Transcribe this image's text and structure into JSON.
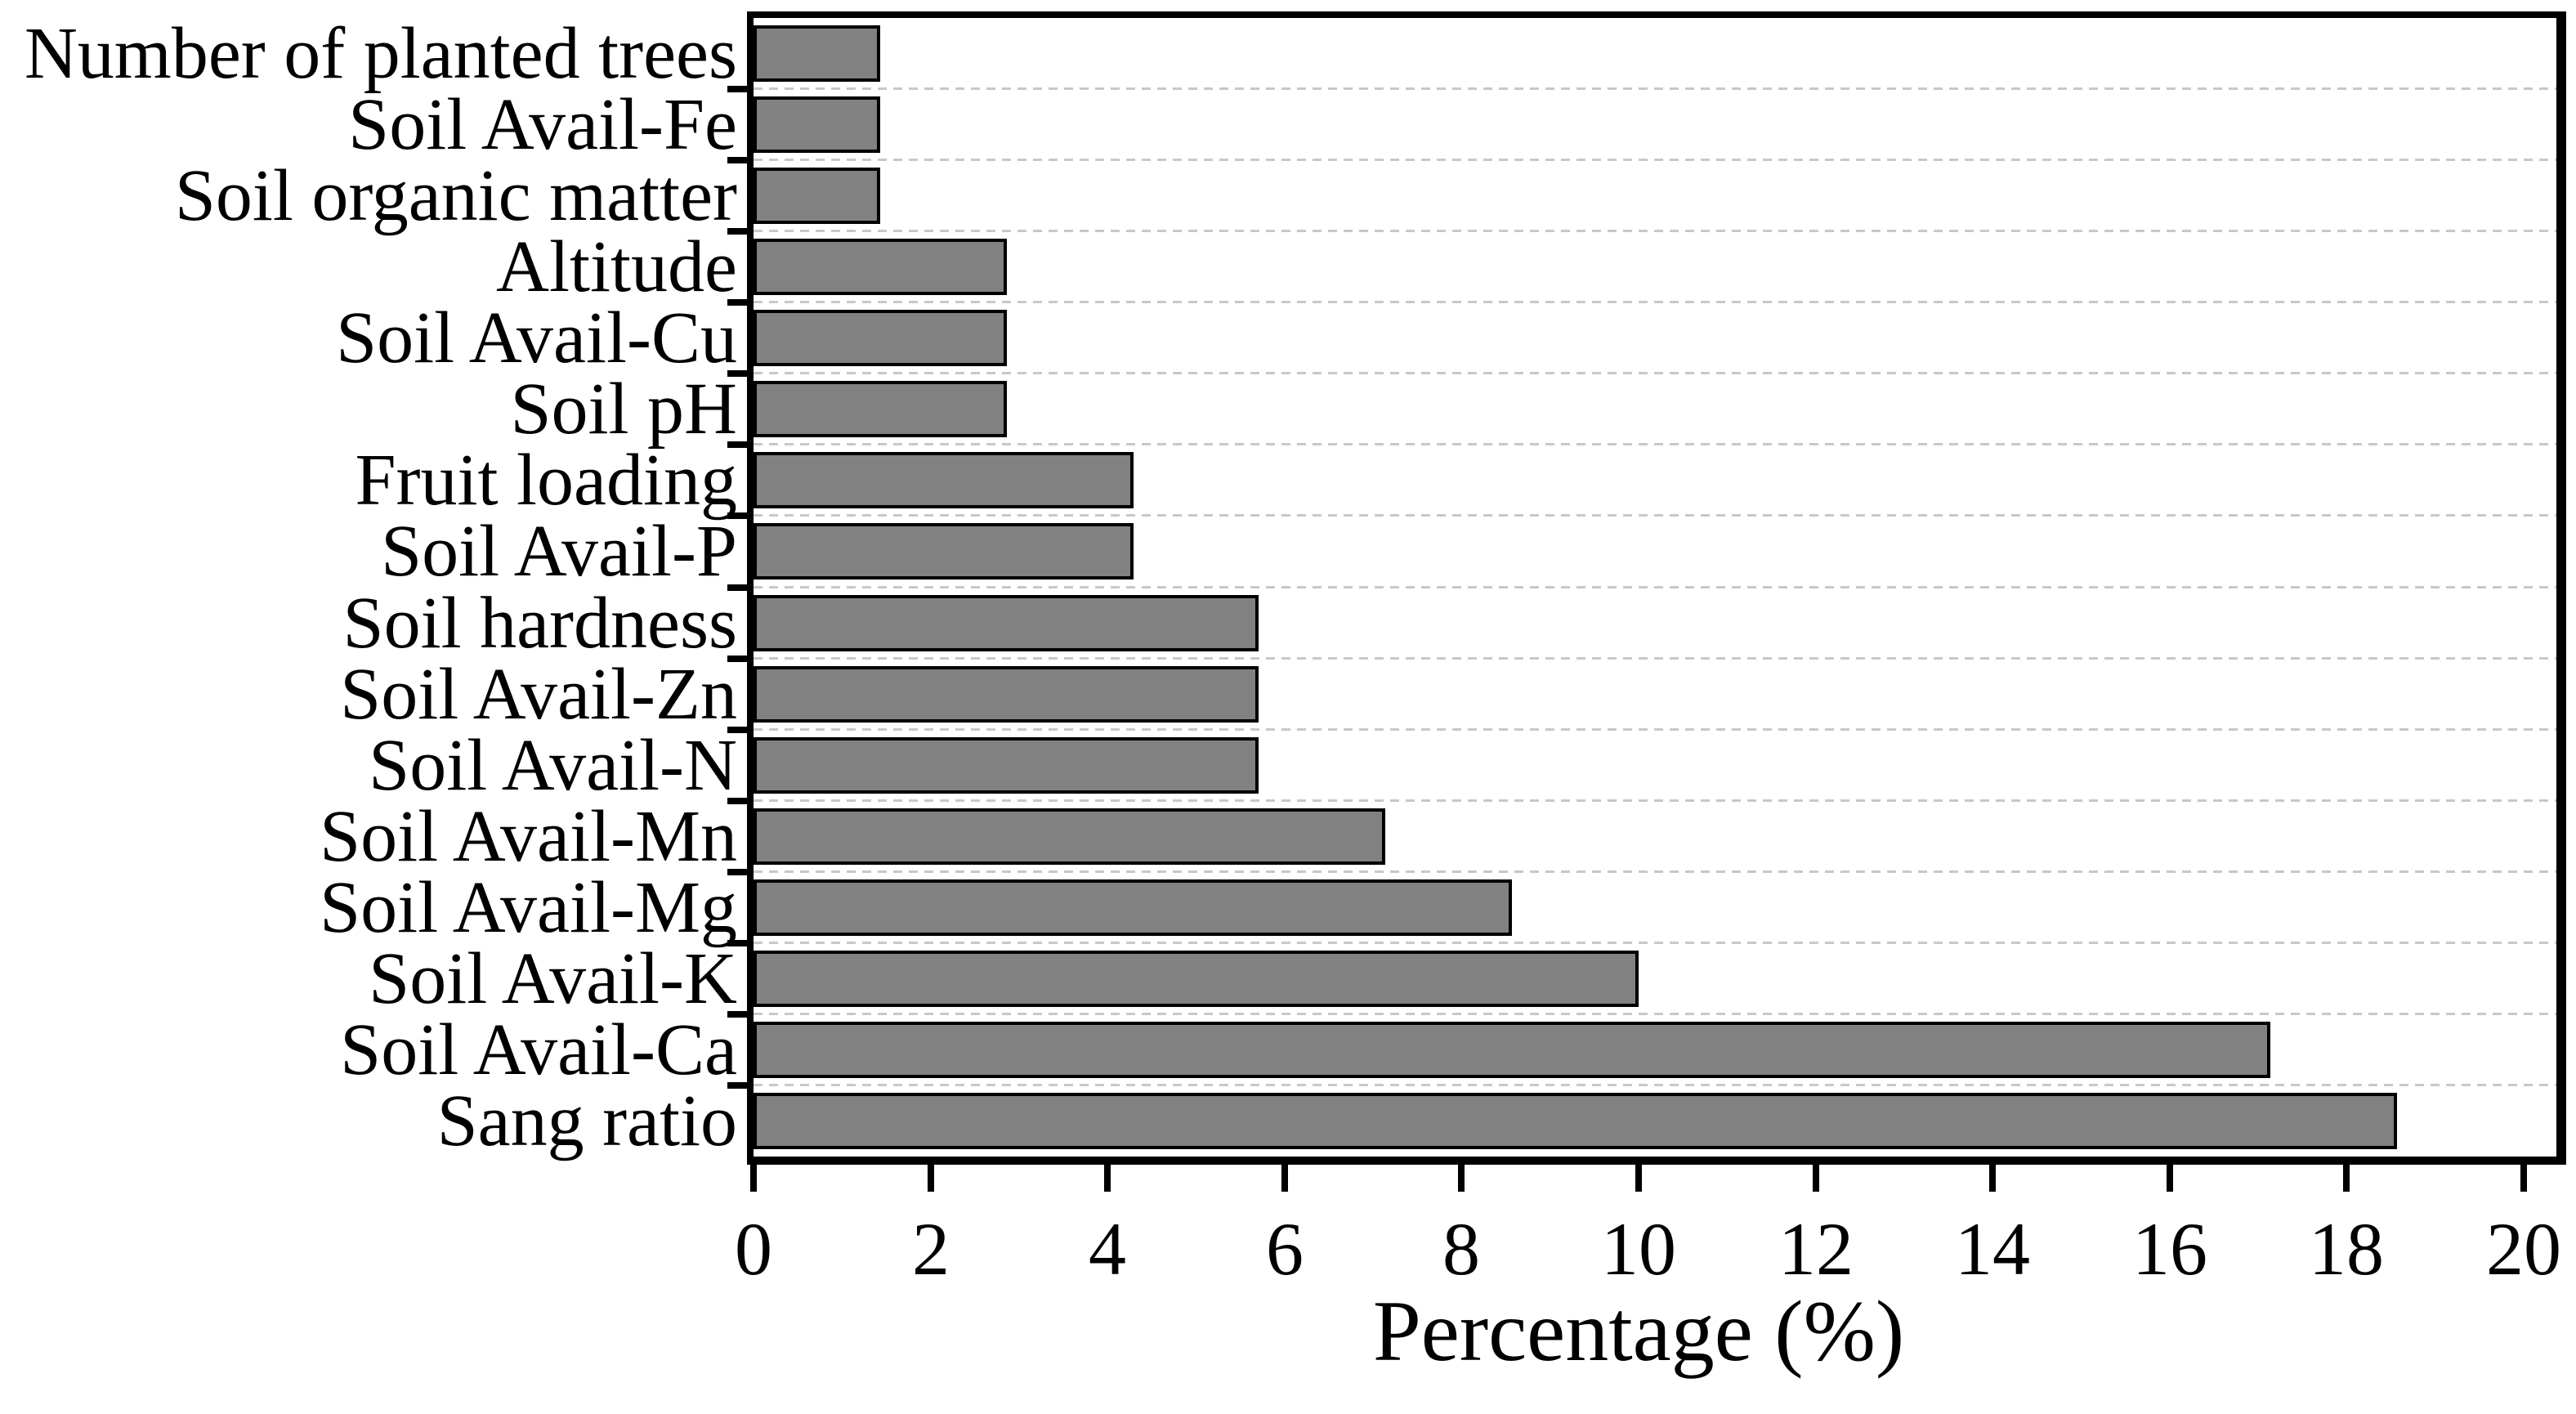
{
  "chart_data": {
    "type": "bar",
    "orientation": "horizontal",
    "title": "",
    "xlabel": "Percentage (%)",
    "ylabel": "",
    "categories": [
      "Number of planted trees",
      "Soil Avail-Fe",
      "Soil organic matter",
      "Altitude",
      "Soil Avail-Cu",
      "Soil pH",
      "Fruit loading",
      "Soil Avail-P",
      "Soil hardness",
      "Soil Avail-Zn",
      "Soil Avail-N",
      "Soil Avail-Mn",
      "Soil Avail-Mg",
      "Soil Avail-K",
      "Soil Avail-Ca",
      "Sang ratio"
    ],
    "values": [
      1.43,
      1.43,
      1.43,
      2.86,
      2.86,
      2.86,
      4.29,
      4.29,
      5.71,
      5.71,
      5.71,
      7.14,
      8.57,
      10.0,
      17.14,
      18.57
    ],
    "x_ticks": [
      0,
      2,
      4,
      6,
      8,
      10,
      12,
      14,
      16,
      18,
      20
    ],
    "xlim": [
      0,
      20.4
    ],
    "grid": "horizontal dashed lines between category rows",
    "legend": "none",
    "bar_fill_color": "#818181",
    "bar_border_color": "#000000",
    "gridline_color": "#c8c8c8",
    "frame_color": "#000000"
  }
}
